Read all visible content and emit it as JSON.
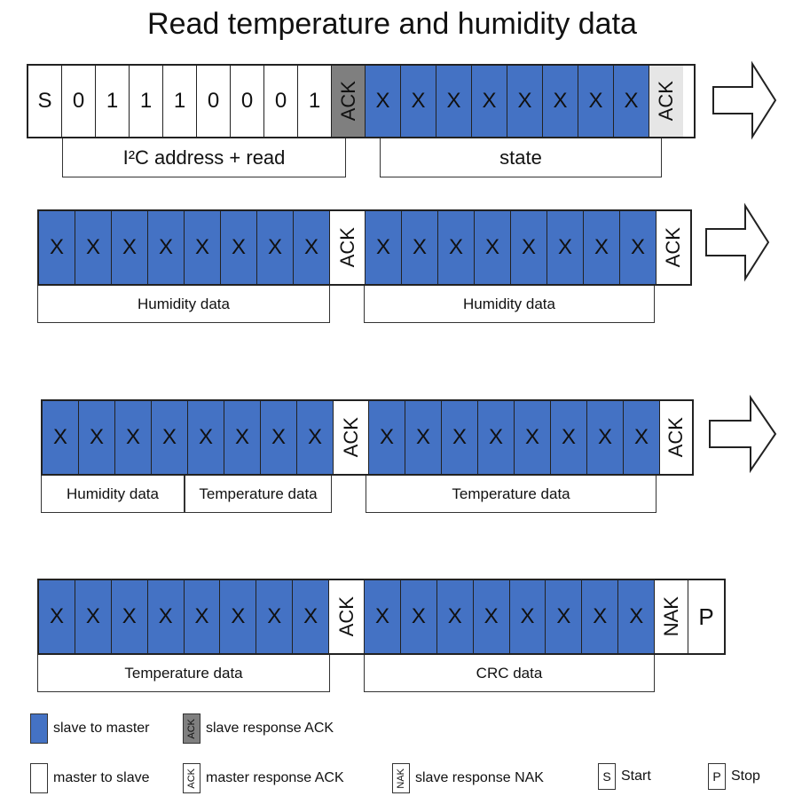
{
  "title": "Read temperature and humidity data",
  "rows": [
    {
      "cells": [
        "S",
        "0",
        "1",
        "1",
        "1",
        "0",
        "0",
        "0",
        "1",
        "ACK",
        "X",
        "X",
        "X",
        "X",
        "X",
        "X",
        "X",
        "X",
        "ACK"
      ],
      "brackets": [
        "I²C address + read",
        "state"
      ]
    },
    {
      "cells": [
        "X",
        "X",
        "X",
        "X",
        "X",
        "X",
        "X",
        "X",
        "ACK",
        "X",
        "X",
        "X",
        "X",
        "X",
        "X",
        "X",
        "X",
        "ACK"
      ],
      "brackets": [
        "Humidity data",
        "Humidity data"
      ]
    },
    {
      "cells": [
        "X",
        "X",
        "X",
        "X",
        "X",
        "X",
        "X",
        "X",
        "ACK",
        "X",
        "X",
        "X",
        "X",
        "X",
        "X",
        "X",
        "X",
        "ACK"
      ],
      "brackets": [
        "Humidity data",
        "Temperature data",
        "Temperature data"
      ]
    },
    {
      "cells": [
        "X",
        "X",
        "X",
        "X",
        "X",
        "X",
        "X",
        "X",
        "ACK",
        "X",
        "X",
        "X",
        "X",
        "X",
        "X",
        "X",
        "X",
        "NAK",
        "P"
      ],
      "brackets": [
        "Temperature data",
        "CRC data"
      ]
    }
  ],
  "legend": {
    "slave_to_master": "slave to master",
    "slave_ack_box": "ACK",
    "slave_ack": "slave response ACK",
    "master_to_slave": "master to slave",
    "master_ack_box": "ACK",
    "master_ack": "master response ACK",
    "nak_box": "NAK",
    "slave_nak": "slave response NAK",
    "start_box": "S",
    "start": "Start",
    "stop_box": "P",
    "stop": "Stop"
  },
  "colors": {
    "slave": "#4472c4",
    "slave_ack": "#7f7f7f",
    "master": "#ffffff"
  }
}
